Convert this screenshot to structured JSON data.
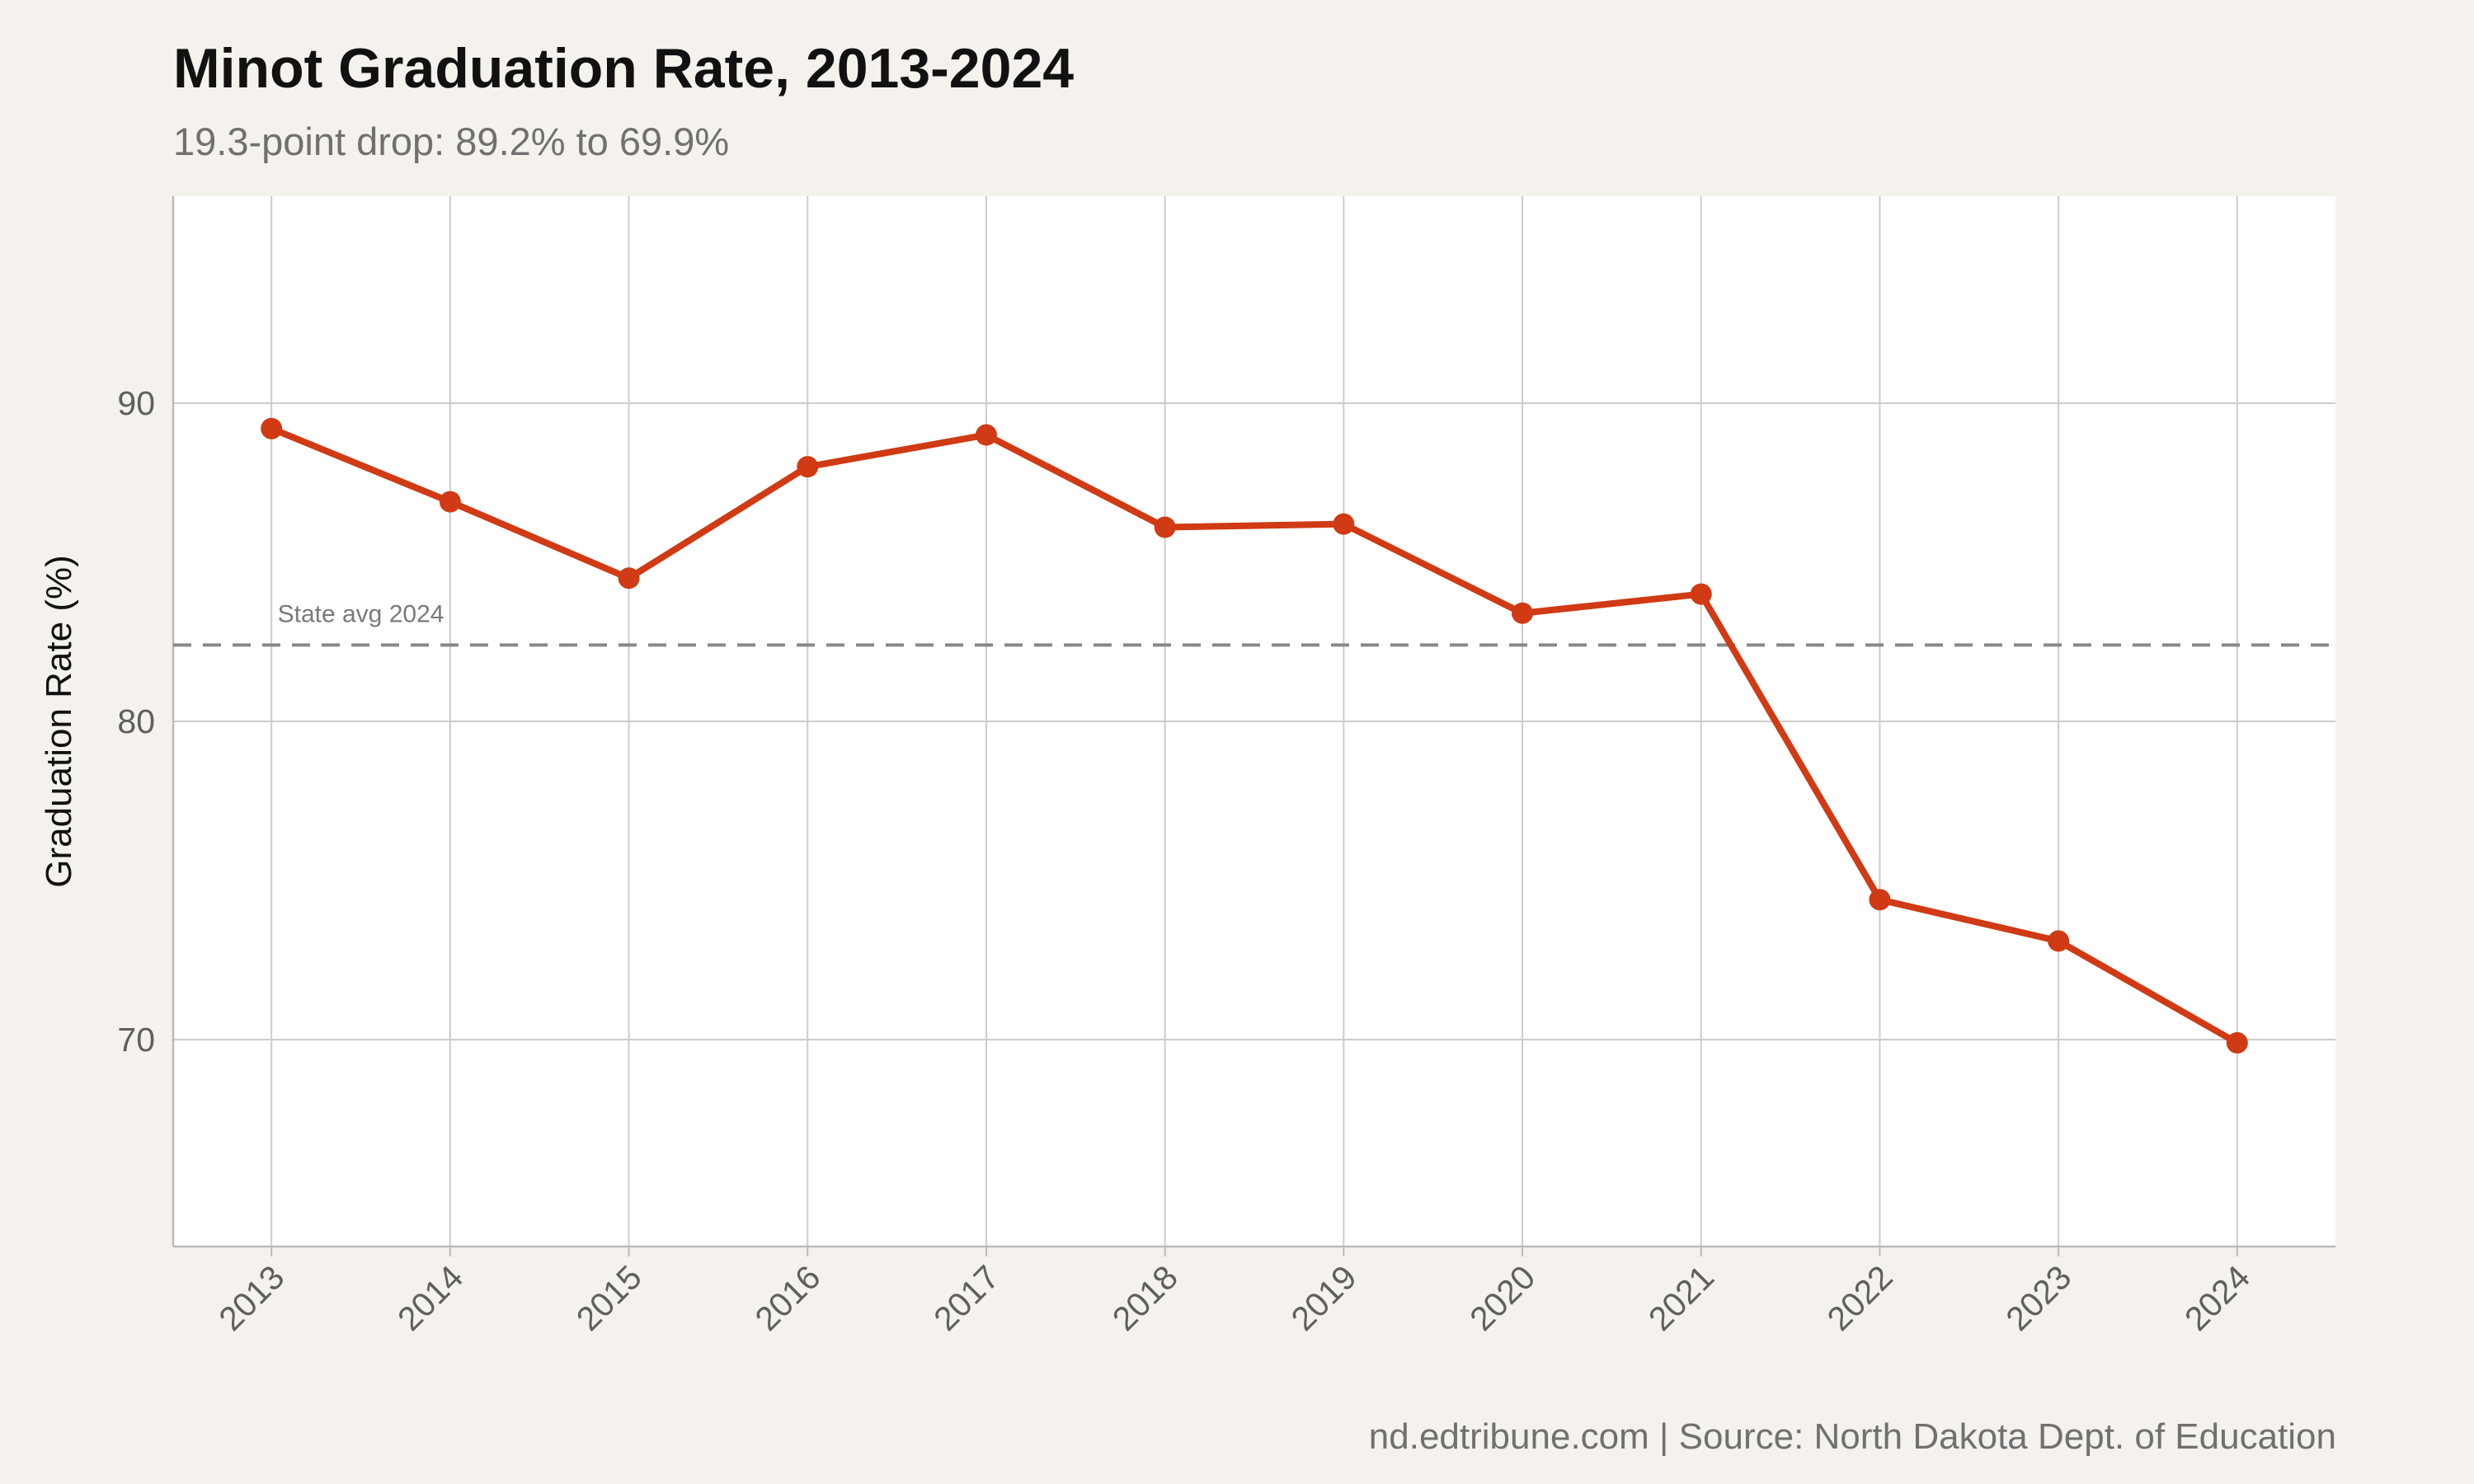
{
  "header": {
    "title": "Minot Graduation Rate, 2013-2024",
    "subtitle": "19.3-point drop: 89.2% to 69.9%"
  },
  "footer": {
    "caption": "nd.edtribune.com | Source: North Dakota Dept. of Education"
  },
  "chart_data": {
    "type": "line",
    "title": "Minot Graduation Rate, 2013-2024",
    "subtitle": "19.3-point drop: 89.2% to 69.9%",
    "xlabel": "",
    "ylabel": "Graduation Rate (%)",
    "x": [
      "2013",
      "2014",
      "2015",
      "2016",
      "2017",
      "2018",
      "2019",
      "2020",
      "2021",
      "2022",
      "2023",
      "2024"
    ],
    "series": [
      {
        "values": [
          89.2,
          86.9,
          84.5,
          88.0,
          89.0,
          86.1,
          86.2,
          83.4,
          84.0,
          74.4,
          73.1,
          69.9
        ],
        "color": "#d03a14"
      }
    ],
    "yticks": [
      70,
      80,
      90
    ],
    "ylim": [
      63.5,
      96.5
    ],
    "grid": true,
    "x_tick_rotation": -45,
    "reference_line": {
      "value": 82.4,
      "label": "State avg 2024",
      "style": "dashed",
      "color": "#888888"
    },
    "colors": {
      "panel_background": "#ffffff",
      "page_background": "#f5f2ed",
      "grid": "#cccccc"
    }
  }
}
